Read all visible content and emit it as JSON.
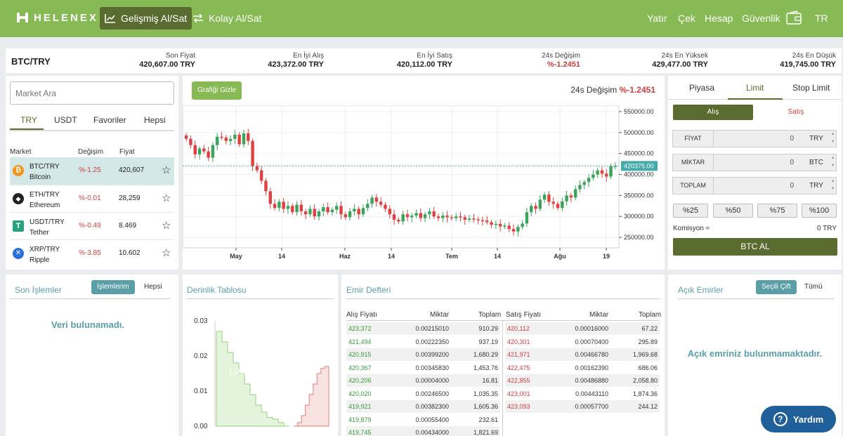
{
  "nav": {
    "brand": "HELENEX",
    "advanced_trade": "Gelişmiş Al/Sat",
    "easy_trade": "Kolay Al/Sat",
    "deposit": "Yatır",
    "withdraw": "Çek",
    "account": "Hesap",
    "security": "Güvenlik",
    "language": "TR"
  },
  "ticker": {
    "pair": "BTC/TRY",
    "stats": [
      {
        "label": "Son Fiyat",
        "value": "420,607.00 TRY",
        "color": "#222222"
      },
      {
        "label": "En İyi Alış",
        "value": "423,372.00 TRY",
        "color": "#222222"
      },
      {
        "label": "En İyi Satış",
        "value": "420,112.00 TRY",
        "color": "#222222"
      },
      {
        "label": "24s Değişim",
        "value": "%-1.2451",
        "color": "#d04040"
      },
      {
        "label": "24s En Yüksek",
        "value": "429,477.00 TRY",
        "color": "#222222"
      },
      {
        "label": "24s En Düşük",
        "value": "419,745.00 TRY",
        "color": "#222222"
      }
    ]
  },
  "market": {
    "search_placeholder": "Market Ara",
    "tabs": [
      "TRY",
      "USDT",
      "Favoriler",
      "Hepsi"
    ],
    "columns": [
      "Market",
      "Değişim",
      "Fiyat"
    ],
    "rows": [
      {
        "pair": "BTC/TRY",
        "name": "Bitcoin",
        "change": "%-1.25",
        "price": "420,607",
        "icon": "bitcoin-icon",
        "color": "#f7931a"
      },
      {
        "pair": "ETH/TRY",
        "name": "Ethereum",
        "change": "%-0.01",
        "price": "28,259",
        "icon": "ethereum-icon",
        "color": "#222222"
      },
      {
        "pair": "USDT/TRY",
        "name": "Tether",
        "change": "%-0.49",
        "price": "8.469",
        "icon": "tether-icon",
        "color": "#26a17b"
      },
      {
        "pair": "XRP/TRY",
        "name": "Ripple",
        "change": "%-3.85",
        "price": "10.602",
        "icon": "ripple-icon",
        "color": "#2a6fdb"
      }
    ]
  },
  "chart": {
    "hide_button": "Grafiği Gizle",
    "change_label": "24s Değişim",
    "change_value": "%-1.2451",
    "price_tag": "420375.00",
    "depth_watermark": "Loading..."
  },
  "chart_data": [
    {
      "type": "candlestick",
      "y_ticks": [
        "550000.00",
        "500000.00",
        "450000.00",
        "400000.00",
        "350000.00",
        "300000.00",
        "250000.00"
      ],
      "x_ticks": [
        "May",
        "14",
        "Haz",
        "14",
        "Tem",
        "14",
        "Ağu",
        "19"
      ],
      "ylim": [
        225000,
        565000
      ],
      "last_price": 420375,
      "close": [
        485000,
        470000,
        448000,
        462000,
        455000,
        440000,
        470000,
        490000,
        488000,
        480000,
        485000,
        495000,
        472000,
        498000,
        480000,
        420000,
        410000,
        385000,
        360000,
        330000,
        320000,
        335000,
        318000,
        325000,
        310000,
        328000,
        312000,
        305000,
        318000,
        300000,
        312000,
        322000,
        310000,
        316000,
        325000,
        305000,
        298000,
        312000,
        318000,
        305000,
        320000,
        330000,
        345000,
        335000,
        328000,
        318000,
        305000,
        292000,
        288000,
        305000,
        298000,
        302000,
        308000,
        296000,
        305000,
        312000,
        300000,
        296000,
        302000,
        298000,
        296000,
        300000,
        298000,
        292000,
        295000,
        293000,
        291000,
        290000,
        286000,
        280000,
        282000,
        276000,
        278000,
        270000,
        264000,
        275000,
        283000,
        310000,
        325000,
        318000,
        340000,
        352000,
        335000,
        330000,
        320000,
        336000,
        350000,
        345000,
        365000,
        375000,
        382000,
        392000,
        400000,
        410000,
        402000,
        395000,
        420000,
        420375
      ]
    },
    {
      "type": "area",
      "y_ticks": [
        "0.03",
        "0.02",
        "0.01",
        "0.00"
      ],
      "ylim": [
        0,
        0.03
      ],
      "bids": [
        0.027,
        0.024,
        0.021,
        0.018,
        0.015,
        0.012,
        0.009,
        0.006,
        0.004,
        0.0025,
        0.002,
        0.001,
        0
      ],
      "asks": [
        0,
        0.001,
        0.003,
        0.006,
        0.009,
        0.012,
        0.015,
        0.0165,
        0.017
      ]
    }
  ],
  "form": {
    "order_types": [
      "Piyasa",
      "Limit",
      "Stop Limit"
    ],
    "buy": "Alış",
    "sell": "Satış",
    "fields": [
      {
        "label": "FİYAT",
        "value": "0",
        "currency": "TRY"
      },
      {
        "label": "MİKTAR",
        "value": "0",
        "currency": "BTC"
      },
      {
        "label": "TOPLAM",
        "value": "0",
        "currency": "TRY"
      }
    ],
    "percents": [
      "%25",
      "%50",
      "%75",
      "%100"
    ],
    "commission_label": "Komisyon ≈",
    "commission_value": "0 TRY",
    "submit": "BTC AL"
  },
  "trades": {
    "title": "Son İşlemler",
    "mine": "İşlemlerim",
    "all": "Hepsi",
    "empty": "Veri bulunamadı."
  },
  "depth": {
    "title": "Derinlik Tablosu"
  },
  "orderbook": {
    "title": "Emir Defteri",
    "bid_headers": [
      "Alış Fiyatı",
      "Miktar",
      "Toplam"
    ],
    "ask_headers": [
      "Satış Fiyatı",
      "Miktar",
      "Toplam"
    ],
    "bids": [
      [
        "423,372",
        "0.00215010",
        "910.29"
      ],
      [
        "421,494",
        "0.00222350",
        "937.19"
      ],
      [
        "420,915",
        "0.00399200",
        "1,680.29"
      ],
      [
        "420,367",
        "0.00345830",
        "1,453.76"
      ],
      [
        "420,206",
        "0.00004000",
        "16.81"
      ],
      [
        "420,020",
        "0.00246500",
        "1,035.35"
      ],
      [
        "419,921",
        "0.00382300",
        "1,605.36"
      ],
      [
        "419,879",
        "0.00055400",
        "232.61"
      ],
      [
        "419,745",
        "0.00434000",
        "1,821.69"
      ]
    ],
    "asks": [
      [
        "420,112",
        "0.00016000",
        "67.22"
      ],
      [
        "420,301",
        "0.00070400",
        "295.89"
      ],
      [
        "421,971",
        "0.00466780",
        "1,969.68"
      ],
      [
        "422,475",
        "0.00162390",
        "686.06"
      ],
      [
        "422,855",
        "0.00486880",
        "2,058.80"
      ],
      [
        "423,001",
        "0.00443110",
        "1,874.36"
      ],
      [
        "423,093",
        "0.00057700",
        "244.12"
      ]
    ]
  },
  "open_orders": {
    "title": "Açık Emirler",
    "selected": "Seçili Çift",
    "all": "Tümü",
    "empty": "Açık emriniz bulunmamaktadır."
  },
  "help": {
    "label": "Yardım"
  },
  "colors": {
    "brand": "#87b954",
    "dark_green": "#5a6b30",
    "teal": "#5a9fa8",
    "red": "#d04040",
    "bid_green": "#3a9a3a",
    "help_blue": "#1f5f9a"
  }
}
